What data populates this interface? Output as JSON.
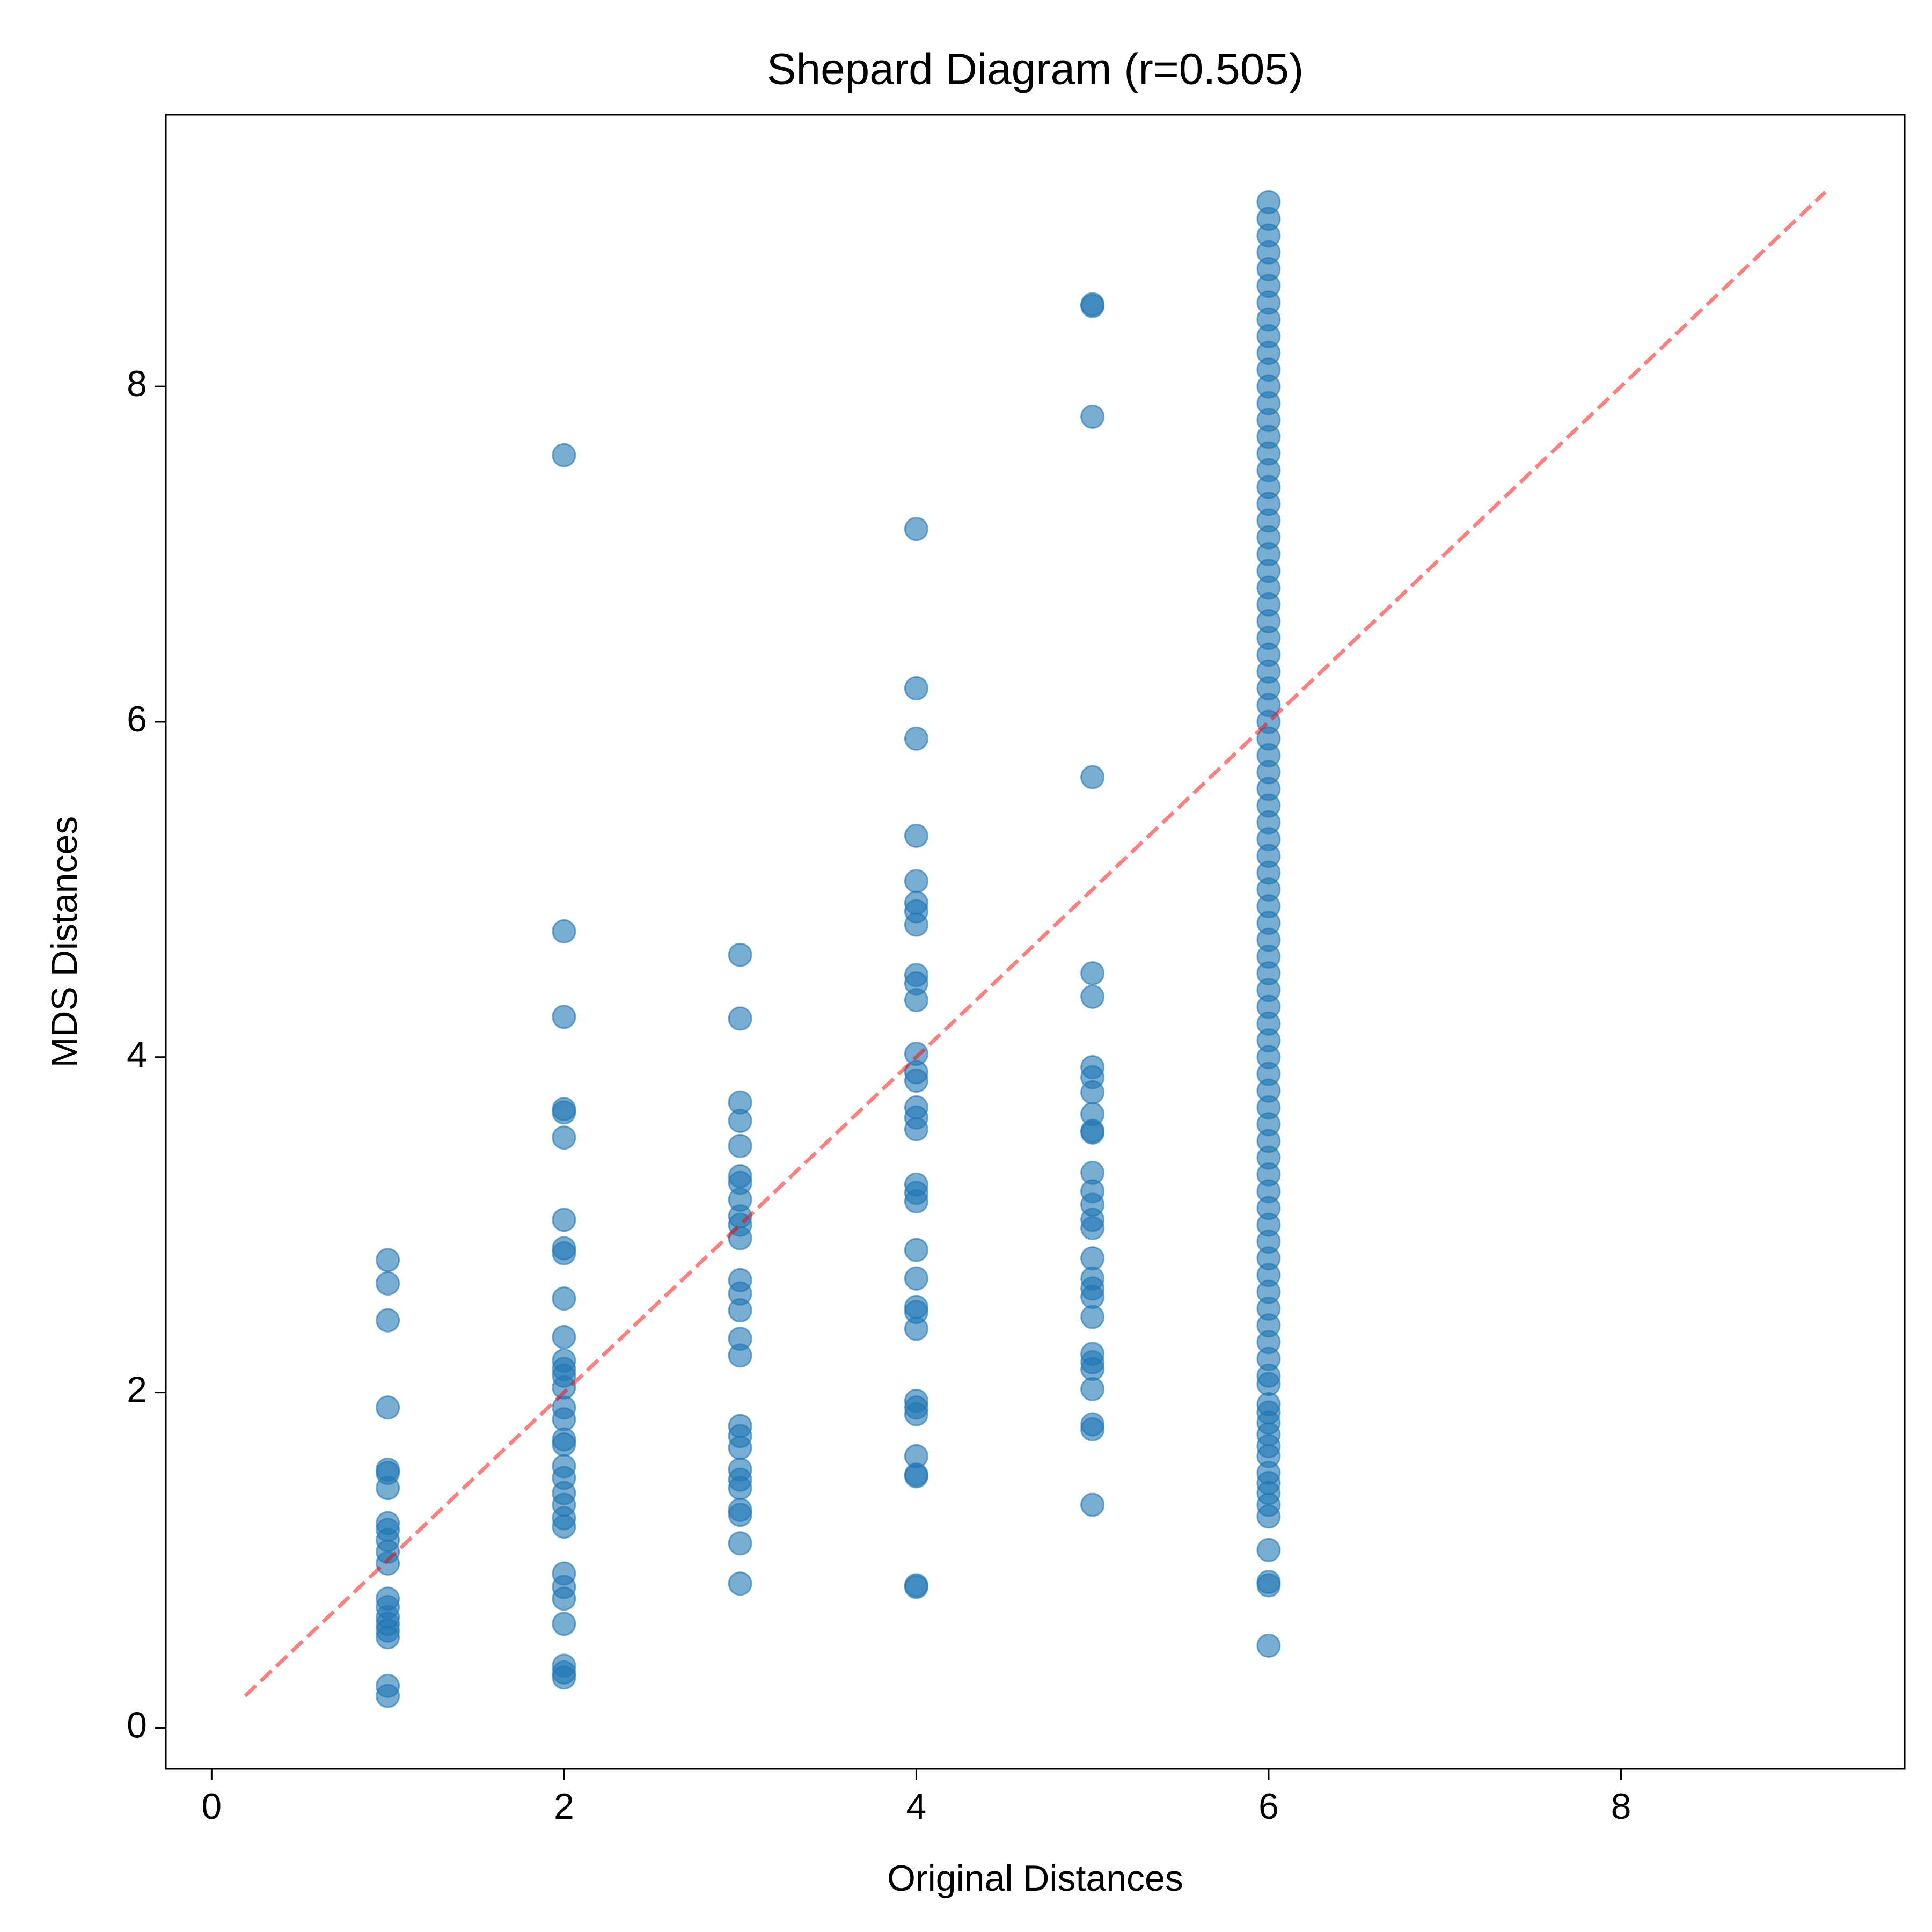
{
  "chart_data": {
    "type": "scatter",
    "title": "Shepard Diagram (r=0.505)",
    "x_label": "Original Distances",
    "y_label": "MDS Distances",
    "color": "#1f77b4",
    "alpha": 0.6,
    "xlim": [
      -0.26,
      9.61
    ],
    "ylim": [
      -0.245,
      9.62
    ],
    "xticks": [
      0,
      2,
      4,
      6,
      8
    ],
    "yticks": [
      0,
      2,
      4,
      6,
      8
    ],
    "grid": false,
    "reference_line": {
      "x": [
        0.19,
        9.16
      ],
      "y": [
        0.19,
        9.16
      ],
      "color": "#ff0000",
      "alpha": 0.5,
      "dashed": true
    },
    "x": [
      1,
      1,
      1,
      1,
      1,
      1,
      1,
      1,
      1,
      1,
      1,
      1,
      1,
      1,
      1,
      1,
      1,
      1,
      1,
      1,
      2,
      2,
      2,
      2,
      2,
      2,
      2,
      2,
      2,
      2,
      2,
      2,
      2,
      2,
      2,
      2,
      2,
      2,
      2,
      2,
      2,
      2,
      2,
      2,
      2,
      2,
      2,
      2,
      2,
      2,
      2,
      2,
      3,
      3,
      3,
      3,
      3,
      3,
      3,
      3,
      3,
      3,
      3,
      3,
      3,
      3,
      3,
      3,
      3,
      3,
      3,
      3,
      3,
      3,
      3,
      3,
      3,
      3,
      4,
      4,
      4,
      4,
      4,
      4,
      4,
      4,
      4,
      4,
      4,
      4,
      4,
      4,
      4,
      4,
      4,
      4,
      4,
      4,
      4,
      4,
      4,
      4,
      4,
      4,
      4,
      4,
      4,
      4,
      4,
      4,
      4,
      5,
      5,
      5,
      5,
      5,
      5,
      5,
      5,
      5,
      5,
      5,
      5,
      5,
      5,
      5,
      5,
      5,
      5,
      5,
      5,
      5,
      5,
      5,
      5,
      5,
      5,
      5,
      5,
      5,
      6,
      6,
      6,
      6,
      6,
      6,
      6,
      6,
      6,
      6,
      6,
      6,
      6,
      6,
      6,
      6,
      6,
      6,
      6,
      6,
      6,
      6,
      6,
      6,
      6,
      6,
      6,
      6,
      6,
      6,
      6,
      6,
      6,
      6,
      6,
      6,
      6,
      6,
      6,
      6,
      6,
      6,
      6,
      6,
      6,
      6,
      6,
      6,
      6,
      6,
      6,
      6,
      6,
      6,
      6,
      6,
      6,
      6,
      6,
      6,
      6,
      6,
      6,
      6,
      6,
      6,
      6,
      6,
      6,
      6,
      6,
      6,
      6,
      6,
      6,
      6,
      6,
      6,
      6,
      6,
      6,
      6,
      6,
      6,
      6,
      6,
      6
    ],
    "values": [
      2.79,
      2.65,
      2.43,
      1.91,
      1.54,
      1.52,
      1.43,
      1.22,
      1.18,
      1.12,
      1.05,
      0.98,
      0.77,
      0.72,
      0.66,
      0.62,
      0.58,
      0.54,
      0.25,
      0.19,
      7.59,
      4.75,
      4.24,
      3.69,
      3.67,
      3.52,
      3.03,
      2.86,
      2.83,
      2.56,
      2.33,
      2.19,
      2.14,
      2.1,
      2.03,
      1.91,
      1.84,
      1.72,
      1.69,
      1.56,
      1.49,
      1.4,
      1.33,
      1.25,
      1.2,
      0.92,
      0.84,
      0.77,
      0.62,
      0.37,
      0.33,
      0.3,
      4.61,
      4.23,
      3.73,
      3.62,
      3.47,
      3.29,
      3.25,
      3.15,
      3.05,
      3.0,
      2.92,
      2.67,
      2.59,
      2.49,
      2.32,
      2.22,
      1.8,
      1.74,
      1.67,
      1.54,
      1.48,
      1.43,
      1.3,
      1.27,
      1.1,
      0.86,
      7.15,
      6.2,
      5.9,
      5.32,
      5.05,
      4.92,
      4.87,
      4.79,
      4.49,
      4.44,
      4.34,
      4.02,
      3.91,
      3.86,
      3.7,
      3.64,
      3.57,
      3.24,
      3.19,
      3.14,
      2.85,
      2.68,
      2.51,
      2.48,
      2.38,
      1.95,
      1.91,
      1.87,
      1.62,
      1.51,
      1.5,
      0.85,
      0.84,
      8.49,
      8.48,
      7.82,
      5.67,
      4.5,
      4.36,
      3.94,
      3.88,
      3.79,
      3.66,
      3.56,
      3.55,
      3.31,
      3.2,
      3.12,
      3.03,
      2.98,
      2.8,
      2.68,
      2.62,
      2.57,
      2.45,
      2.23,
      2.18,
      2.14,
      2.02,
      1.81,
      1.78,
      1.33,
      2.1,
      2.2,
      2.3,
      2.4,
      2.5,
      2.6,
      2.7,
      2.8,
      2.9,
      3.0,
      3.1,
      3.2,
      3.3,
      3.4,
      3.5,
      3.6,
      3.7,
      3.8,
      3.9,
      4.0,
      4.1,
      4.2,
      4.3,
      4.4,
      4.5,
      4.6,
      4.7,
      4.8,
      4.9,
      5.0,
      5.1,
      5.2,
      5.3,
      5.4,
      5.5,
      5.6,
      5.7,
      5.8,
      5.9,
      6.0,
      6.1,
      6.2,
      6.3,
      6.4,
      6.5,
      6.6,
      6.7,
      6.8,
      6.9,
      7.0,
      7.1,
      7.2,
      7.3,
      7.4,
      7.5,
      7.6,
      7.7,
      7.8,
      7.9,
      8.0,
      8.1,
      8.2,
      8.3,
      8.4,
      8.5,
      8.6,
      8.7,
      8.8,
      8.9,
      9.0,
      9.1,
      2.05,
      1.93,
      1.88,
      1.82,
      1.75,
      1.68,
      1.62,
      1.52,
      1.46,
      1.4,
      1.33,
      1.26,
      1.06,
      0.87,
      0.85,
      0.49
    ]
  }
}
